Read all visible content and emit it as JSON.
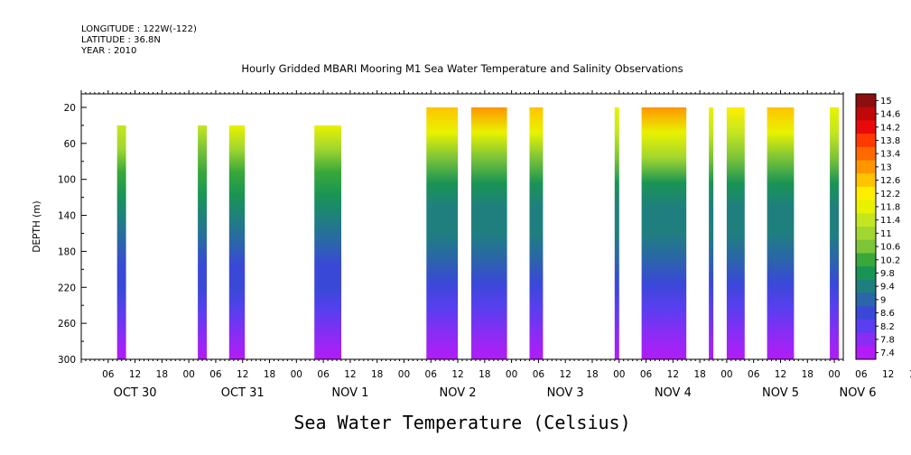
{
  "header": {
    "longitude": "LONGITUDE : 122W(-122)",
    "latitude": "LATITUDE : 36.8N",
    "year": "YEAR : 2010"
  },
  "chart_data": {
    "type": "heatmap",
    "title": "Hourly Gridded MBARI Mooring M1 Sea Water Temperature and Salinity Observations",
    "xlabel": "Sea Water Temperature (Celsius)",
    "ylabel": "DEPTH (m)",
    "x_hour_ticks": [
      "06",
      "12",
      "18",
      "00",
      "06",
      "12",
      "18",
      "00",
      "06",
      "12",
      "18",
      "00",
      "06",
      "12",
      "18",
      "00",
      "06",
      "12",
      "18",
      "00",
      "06",
      "12",
      "18",
      "00",
      "06",
      "12",
      "18",
      "00",
      "06",
      "12",
      "18",
      "00"
    ],
    "x_date_labels": [
      "OCT 30",
      "OCT 31",
      "NOV  1",
      "NOV  2",
      "NOV  3",
      "NOV  4",
      "NOV  5",
      "NOV  6"
    ],
    "xlim_hours": [
      0,
      170
    ],
    "ylim": [
      300,
      5
    ],
    "y_ticks": [
      20,
      60,
      100,
      140,
      180,
      220,
      260,
      300
    ],
    "colorbar": {
      "levels": [
        15,
        14.6,
        14.2,
        13.8,
        13.4,
        13,
        12.6,
        12.2,
        11.8,
        11.4,
        11,
        10.6,
        10.2,
        9.8,
        9.4,
        9,
        8.6,
        8.2,
        7.8,
        7.4
      ],
      "colors": [
        "#8c0e0e",
        "#c00808",
        "#e80a0a",
        "#ff3a00",
        "#ff6a00",
        "#ff9600",
        "#ffc400",
        "#ffee00",
        "#e8f200",
        "#c4e620",
        "#a2d630",
        "#7cc438",
        "#38a83a",
        "#1a9454",
        "#1f7f7f",
        "#2a66a8",
        "#3a48d8",
        "#5a3ef0",
        "#8a2cf4",
        "#b21cf6"
      ]
    },
    "observation_segments": [
      {
        "start_hour": 8.0,
        "end_hour": 10.0,
        "top_depth": 40,
        "surface_temp": 12.1
      },
      {
        "start_hour": 26.0,
        "end_hour": 28.0,
        "top_depth": 40,
        "surface_temp": 12.0
      },
      {
        "start_hour": 33.0,
        "end_hour": 36.5,
        "top_depth": 40,
        "surface_temp": 12.2
      },
      {
        "start_hour": 52.0,
        "end_hour": 58.0,
        "top_depth": 40,
        "surface_temp": 12.4
      },
      {
        "start_hour": 77.0,
        "end_hour": 84.0,
        "top_depth": 20,
        "surface_temp": 12.7
      },
      {
        "start_hour": 87.0,
        "end_hour": 95.0,
        "top_depth": 20,
        "surface_temp": 12.8
      },
      {
        "start_hour": 100.0,
        "end_hour": 103.0,
        "top_depth": 20,
        "surface_temp": 12.6
      },
      {
        "start_hour": 119.0,
        "end_hour": 120.0,
        "top_depth": 20,
        "surface_temp": 12.0
      },
      {
        "start_hour": 125.0,
        "end_hour": 135.0,
        "top_depth": 20,
        "surface_temp": 13.1
      },
      {
        "start_hour": 140.0,
        "end_hour": 141.0,
        "top_depth": 20,
        "surface_temp": 12.0
      },
      {
        "start_hour": 144.0,
        "end_hour": 148.0,
        "top_depth": 20,
        "surface_temp": 12.3
      },
      {
        "start_hour": 153.0,
        "end_hour": 159.0,
        "top_depth": 20,
        "surface_temp": 12.6
      },
      {
        "start_hour": 167.0,
        "end_hour": 169.0,
        "top_depth": 20,
        "surface_temp": 12.0
      }
    ],
    "grid": false
  }
}
